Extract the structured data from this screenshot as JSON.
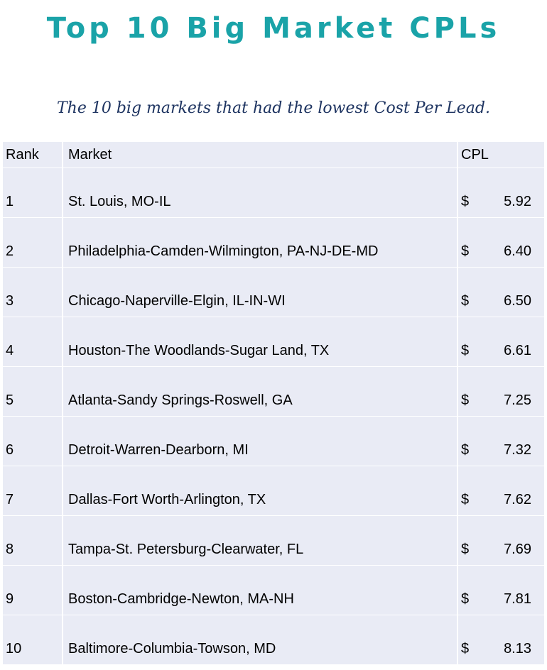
{
  "title": "Top 10 Big Market CPLs",
  "subtitle": "The 10 big markets that had the lowest Cost Per Lead.",
  "table": {
    "headers": [
      "Rank",
      "Market",
      "CPL"
    ],
    "currency_symbol": "$",
    "rows": [
      {
        "rank": "1",
        "market": "St. Louis, MO-IL",
        "cpl": "5.92"
      },
      {
        "rank": "2",
        "market": "Philadelphia-Camden-Wilmington, PA-NJ-DE-MD",
        "cpl": "6.40"
      },
      {
        "rank": "3",
        "market": "Chicago-Naperville-Elgin, IL-IN-WI",
        "cpl": "6.50"
      },
      {
        "rank": "4",
        "market": "Houston-The Woodlands-Sugar Land, TX",
        "cpl": "6.61"
      },
      {
        "rank": "5",
        "market": "Atlanta-Sandy Springs-Roswell, GA",
        "cpl": "7.25"
      },
      {
        "rank": "6",
        "market": "Detroit-Warren-Dearborn, MI",
        "cpl": "7.32"
      },
      {
        "rank": "7",
        "market": "Dallas-Fort Worth-Arlington, TX",
        "cpl": "7.62"
      },
      {
        "rank": "8",
        "market": "Tampa-St. Petersburg-Clearwater, FL",
        "cpl": "7.69"
      },
      {
        "rank": "9",
        "market": "Boston-Cambridge-Newton, MA-NH",
        "cpl": "7.81"
      },
      {
        "rank": "10",
        "market": "Baltimore-Columbia-Towson, MD",
        "cpl": "8.13"
      }
    ]
  },
  "colors": {
    "title": "#1aa3a8",
    "subtitle": "#1e3461",
    "table_fill": "#e9ebf5"
  }
}
